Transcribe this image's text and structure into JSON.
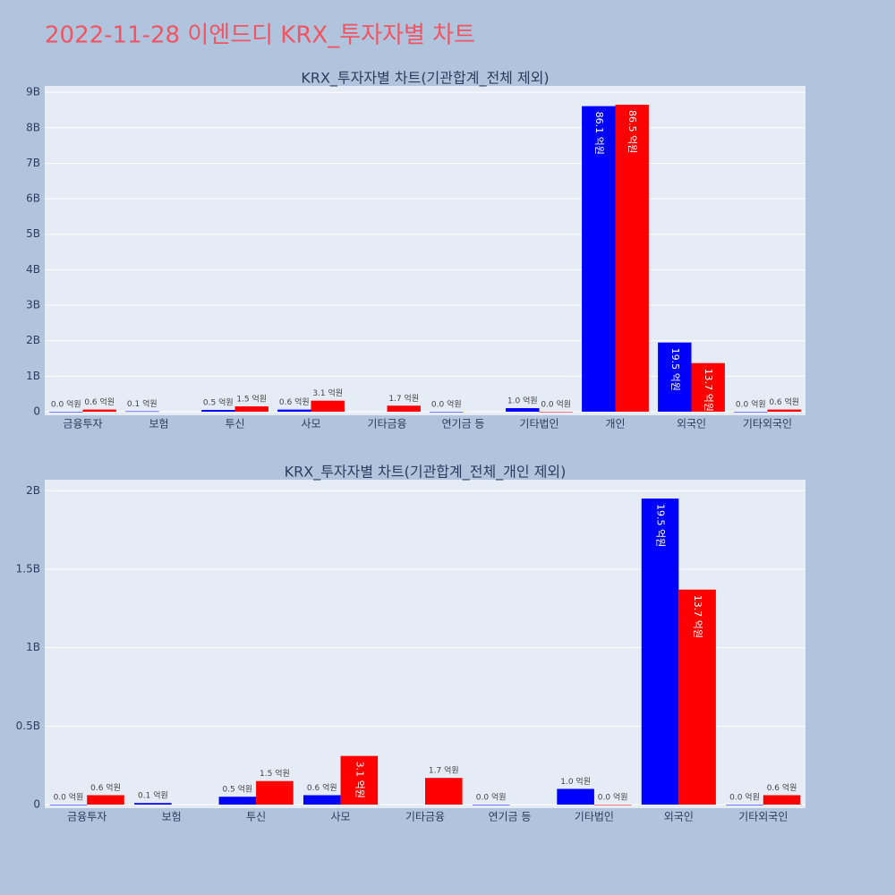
{
  "title": "2022-11-28 이엔드디 KRX_투자자별 차트",
  "chart_data": [
    {
      "type": "bar",
      "title": "KRX_투자자별 차트(기관합계_전체 제외)",
      "categories": [
        "금융투자",
        "보험",
        "투신",
        "사모",
        "기타금융",
        "연기금 등",
        "기타법인",
        "개인",
        "외국인",
        "기타외국인"
      ],
      "series": [
        {
          "color": "#0000ff",
          "values": [
            0,
            10000000,
            50000000,
            60000000,
            null,
            0,
            100000000,
            8610000000,
            1950000000,
            0
          ],
          "value_labels": [
            "0.0 억원",
            "0.1 억원",
            "0.5 억원",
            "0.6 억원",
            null,
            "0.0 억원",
            "1.0 억원",
            "86.1 억원",
            "19.5 억원",
            "0.0 억원"
          ]
        },
        {
          "color": "#ff0000",
          "values": [
            60000000,
            null,
            150000000,
            310000000,
            170000000,
            null,
            0,
            8650000000,
            1370000000,
            60000000
          ],
          "value_labels": [
            "0.6 억원",
            null,
            "1.5 억원",
            "3.1 억원",
            "1.7 억원",
            null,
            "0.0 억원",
            "86.5 억원",
            "13.7 억원",
            "0.6 억원"
          ]
        }
      ],
      "ylim": [
        0,
        9180000000
      ],
      "yticks": [
        0,
        {
          "value": 1000000000,
          "label": "1B"
        },
        {
          "value": 2000000000,
          "label": "2B"
        },
        {
          "value": 3000000000,
          "label": "3B"
        },
        {
          "value": 4000000000,
          "label": "4B"
        },
        {
          "value": 5000000000,
          "label": "5B"
        },
        {
          "value": 6000000000,
          "label": "6B"
        },
        {
          "value": 7000000000,
          "label": "7B"
        },
        {
          "value": 8000000000,
          "label": "8B"
        },
        {
          "value": 9000000000,
          "label": "9B"
        }
      ],
      "grid": true
    },
    {
      "type": "bar",
      "title": "KRX_투자자별 차트(기관합계_전체_개인 제외)",
      "categories": [
        "금융투자",
        "보험",
        "투신",
        "사모",
        "기타금융",
        "연기금 등",
        "기타법인",
        "외국인",
        "기타외국인"
      ],
      "series": [
        {
          "color": "#0000ff",
          "values": [
            0,
            10000000,
            50000000,
            60000000,
            null,
            0,
            100000000,
            1950000000,
            0
          ],
          "value_labels": [
            "0.0 억원",
            "0.1 억원",
            "0.5 억원",
            "0.6 억원",
            null,
            "0.0 억원",
            "1.0 억원",
            "19.5 억원",
            "0.0 억원"
          ]
        },
        {
          "color": "#ff0000",
          "values": [
            60000000,
            null,
            150000000,
            310000000,
            170000000,
            null,
            0,
            1370000000,
            60000000
          ],
          "value_labels": [
            "0.6 억원",
            null,
            "1.5 억원",
            "3.1 억원",
            "1.7 억원",
            null,
            "0.0 억원",
            "13.7 억원",
            "0.6 억원"
          ]
        }
      ],
      "ylim": [
        0,
        2070000000
      ],
      "yticks": [
        0,
        {
          "value": 500000000,
          "label": "0.5B"
        },
        {
          "value": 1000000000,
          "label": "1B"
        },
        {
          "value": 1500000000,
          "label": "1.5B"
        },
        {
          "value": 2000000000,
          "label": "2B"
        }
      ],
      "grid": true
    }
  ]
}
